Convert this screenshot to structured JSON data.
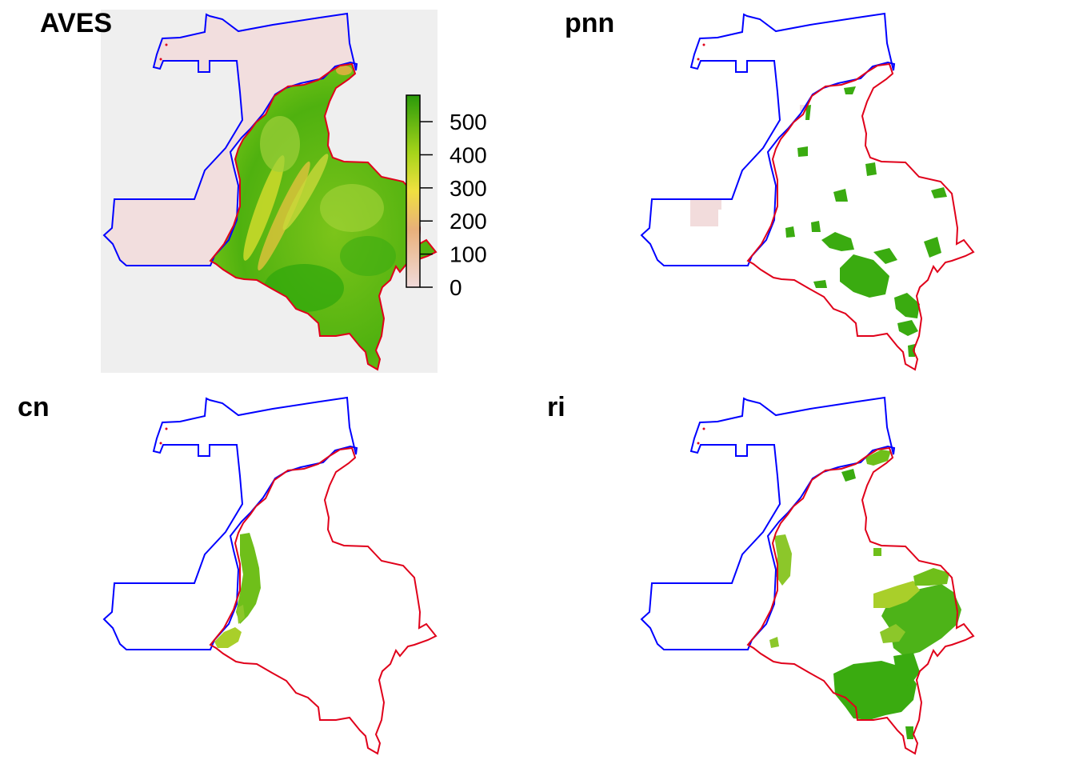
{
  "panels": [
    {
      "id": "aves",
      "title": "AVES"
    },
    {
      "id": "pnn",
      "title": "pnn"
    },
    {
      "id": "cn",
      "title": "cn"
    },
    {
      "id": "ri",
      "title": "ri"
    }
  ],
  "legend": {
    "ticks": [
      "0",
      "100",
      "200",
      "300",
      "400",
      "500"
    ],
    "range": [
      0,
      580
    ],
    "colors": [
      "#f0dada",
      "#e8b07a",
      "#f0e040",
      "#a6d41a",
      "#2a9a0a"
    ]
  },
  "colors": {
    "boundary_outer": "#0000ff",
    "boundary_inner": "#e0001a",
    "background_extent": "#efefef"
  }
}
